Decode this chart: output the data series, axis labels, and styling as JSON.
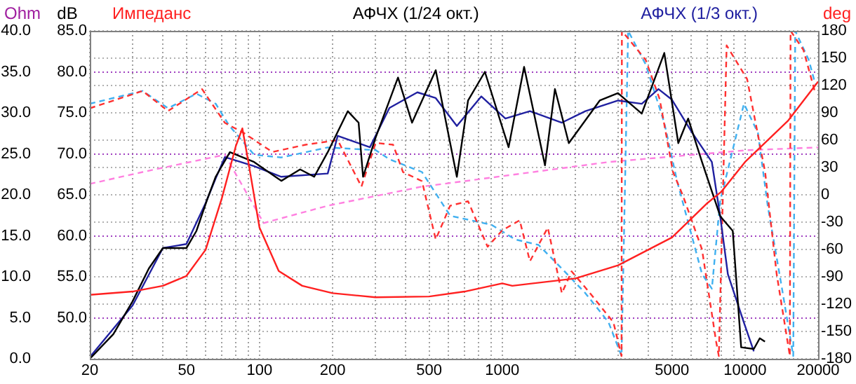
{
  "chart_data": {
    "type": "line",
    "ylabel": "Ohm",
    "y2label": "dB",
    "y3label": "deg",
    "legend": "top",
    "grid": true,
    "log": "x",
    "line_style": "solid",
    "marker": "none",
    "xlim": [
      20,
      20000
    ],
    "xticks": [
      20,
      {
        "value": 30,
        "label": null
      },
      {
        "value": 40,
        "label": null
      },
      50,
      {
        "value": 60,
        "label": null
      },
      {
        "value": 70,
        "label": null
      },
      {
        "value": 80,
        "label": null
      },
      {
        "value": 90,
        "label": null
      },
      100,
      200,
      {
        "value": 300,
        "label": null
      },
      {
        "value": 400,
        "label": null
      },
      500,
      {
        "value": 600,
        "label": null
      },
      {
        "value": 700,
        "label": null
      },
      {
        "value": 800,
        "label": null
      },
      {
        "value": 900,
        "label": null
      },
      1000,
      {
        "value": 2000,
        "label": null
      },
      {
        "value": 3000,
        "label": null
      },
      {
        "value": 4000,
        "label": null
      },
      5000,
      {
        "value": 6000,
        "label": null
      },
      {
        "value": 7000,
        "label": null
      },
      {
        "value": 8000,
        "label": null
      },
      {
        "value": 9000,
        "label": null
      },
      10000,
      20000
    ],
    "ylim": [
      0,
      40
    ],
    "yticks": [
      {
        "value": 0,
        "label": "0.0"
      },
      {
        "value": 5,
        "label": "5.0"
      },
      {
        "value": 10,
        "label": "10.0"
      },
      {
        "value": 15,
        "label": "15.0"
      },
      {
        "value": 20,
        "label": "20.0"
      },
      {
        "value": 25,
        "label": "25.0"
      },
      {
        "value": 30,
        "label": "30.0"
      },
      {
        "value": 35,
        "label": "35.0"
      },
      {
        "value": 40,
        "label": "40.0"
      }
    ],
    "y2lim": [
      45,
      85
    ],
    "y2ticks": [
      {
        "value": 50,
        "label": "50.0"
      },
      {
        "value": 55,
        "label": "55.0"
      },
      {
        "value": 60,
        "label": "60.0"
      },
      {
        "value": 65,
        "label": "65.0"
      },
      {
        "value": 70,
        "label": "70.0"
      },
      {
        "value": 75,
        "label": "75.0"
      },
      {
        "value": 80,
        "label": "80.0"
      },
      {
        "value": 85,
        "label": "85.0"
      }
    ],
    "y3lim": [
      -180,
      180
    ],
    "y3ticks": [
      -180,
      -150,
      -120,
      -90,
      -60,
      -30,
      0,
      30,
      60,
      90,
      120,
      150,
      180
    ],
    "series": [
      {
        "name": "Импеданс",
        "color": "#ff2020",
        "x": [
          20,
          30,
          40,
          50,
          60,
          70,
          80,
          85,
          90,
          100,
          120,
          150,
          200,
          300,
          500,
          700,
          1000,
          1100,
          2000,
          3000,
          5000,
          7000,
          8000,
          10000,
          15000,
          20000
        ],
        "values": [
          7.8,
          8.2,
          8.9,
          10.1,
          13.3,
          19.6,
          26,
          28.1,
          24,
          16,
          10.7,
          8.9,
          8,
          7.5,
          7.6,
          8.2,
          9.2,
          8.9,
          9.8,
          11.4,
          14.8,
          19,
          20.4,
          24,
          29,
          33.8
        ]
      },
      {
        "name": "АФЧХ (1/24 окт.)",
        "color": "#000000",
        "axis": "y2",
        "x": [
          20,
          25,
          30,
          35,
          40,
          50,
          55,
          61,
          66,
          75.5,
          95,
          123,
          147,
          168,
          191,
          231,
          256,
          267,
          301,
          372,
          425,
          532,
          650,
          723,
          848,
          1062,
          1230,
          1500,
          1648,
          1880,
          2520,
          2996,
          3755,
          4650,
          5310,
          5830,
          6650,
          7900,
          8900,
          9640,
          10870,
          11500,
          12080
        ],
        "values": [
          45,
          48,
          52,
          56,
          58.5,
          58.5,
          60.6,
          64.5,
          67.2,
          70.2,
          69,
          66.7,
          68.1,
          67.2,
          70.2,
          75.2,
          73.8,
          67.2,
          72,
          79.3,
          73.8,
          80.2,
          67.2,
          76.5,
          80,
          70.8,
          80.6,
          68.6,
          77.9,
          71.3,
          76.5,
          77.4,
          74.9,
          82.3,
          71.3,
          74.3,
          69,
          62.4,
          60.6,
          46.4,
          46.2,
          47.5,
          47.1
        ]
      },
      {
        "name": "АФЧХ (1/3 окт.)",
        "color": "#2020a0",
        "axis": "y2",
        "x": [
          20,
          30,
          40,
          50,
          60,
          66,
          72,
          95,
          123,
          191,
          210,
          285,
          343,
          447,
          532,
          650,
          820,
          1030,
          1300,
          1760,
          2200,
          3000,
          3755,
          4400,
          5000,
          6050,
          7300,
          7900,
          8500,
          9900,
          10870
        ],
        "values": [
          45.2,
          51.5,
          58.5,
          59,
          64,
          67,
          69.6,
          68.5,
          67.2,
          67.6,
          72.2,
          70.8,
          75.6,
          77.5,
          76.8,
          73.4,
          77,
          74.3,
          75.2,
          73.8,
          75.2,
          76.5,
          76.1,
          77.9,
          76.6,
          72.6,
          69,
          62.4,
          55.3,
          49.4,
          45.9
        ]
      },
      {
        "color": "#ff3030",
        "axis": "y3",
        "line_style": "dashed",
        "x": [
          20,
          33,
          42,
          58,
          72,
          86,
          113,
          155,
          210,
          263,
          301,
          355,
          390,
          467,
          532,
          610,
          723,
          870,
          1000,
          1180,
          1300,
          1540,
          1760,
          1930,
          2300,
          2870,
          3100,
          3110,
          3900,
          4450,
          5050,
          5550,
          6650,
          7600,
          7800,
          8400,
          10200,
          12100,
          13500,
          15300,
          15400,
          17400,
          19500
        ],
        "values": [
          95,
          114,
          92,
          116,
          79,
          68,
          47,
          55,
          60,
          9,
          57,
          55,
          25,
          15,
          -49,
          -12,
          -7,
          -57,
          -39,
          -28,
          -73,
          -36,
          -108,
          -84,
          -108,
          -140,
          -177,
          180,
          148,
          105,
          25,
          -1,
          -60,
          -161,
          -177,
          164,
          127,
          25,
          -87,
          -177,
          180,
          159,
          111
        ]
      },
      {
        "color": "#40b0f0",
        "axis": "y3",
        "line_style": "dashed",
        "x": [
          20,
          33,
          42,
          55,
          66,
          75,
          95,
          123,
          191,
          301,
          343,
          467,
          610,
          905,
          1130,
          1410,
          1760,
          2200,
          2740,
          3100,
          3300,
          3900,
          4650,
          5250,
          6650,
          7300,
          7900,
          9900,
          11300,
          12400,
          14200,
          15800,
          16100,
          18300,
          19500
        ],
        "values": [
          100,
          114,
          95,
          111,
          100,
          76,
          44,
          41,
          52,
          49,
          39,
          25,
          -23,
          -33,
          -49,
          -55,
          -81,
          -108,
          -140,
          -177,
          180,
          143,
          79,
          15,
          -87,
          -103,
          -7,
          100,
          68,
          -12,
          -103,
          -177,
          180,
          148,
          121
        ]
      },
      {
        "color": "#ff80e0",
        "axis": "y3",
        "line_style": "dashed",
        "x": [
          20,
          33,
          72,
          104,
          191,
          467,
          700,
          2740,
          10200,
          20000
        ],
        "values": [
          12,
          25,
          44,
          -31,
          -12,
          9,
          15,
          36,
          49,
          52
        ]
      }
    ]
  }
}
